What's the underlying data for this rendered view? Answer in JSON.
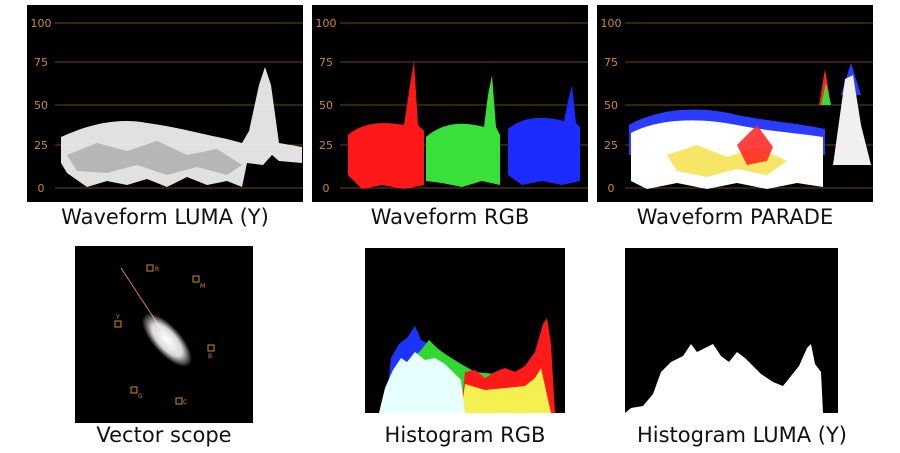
{
  "scopes": {
    "waveform_luma": {
      "caption": "Waveform LUMA (Y)",
      "ticks": [
        "100",
        "75",
        "50",
        "25",
        "0"
      ]
    },
    "waveform_rgb": {
      "caption": "Waveform RGB",
      "ticks": [
        "100",
        "75",
        "50",
        "25",
        "0"
      ]
    },
    "waveform_parade": {
      "caption": "Waveform PARADE",
      "ticks": [
        "100",
        "75",
        "50",
        "25",
        "0"
      ]
    },
    "vector_scope": {
      "caption": "Vector scope",
      "targets": [
        "R",
        "M",
        "Y",
        "B",
        "G",
        "C"
      ]
    },
    "histogram_rgb": {
      "caption": "Histogram RGB"
    },
    "histogram_luma": {
      "caption": "Histogram LUMA (Y)"
    }
  },
  "colors": {
    "graticule": "#d08a2a",
    "background": "#000000",
    "red": "#ff2020",
    "green": "#30e030",
    "blue": "#2030ff",
    "white": "#ffffff"
  }
}
